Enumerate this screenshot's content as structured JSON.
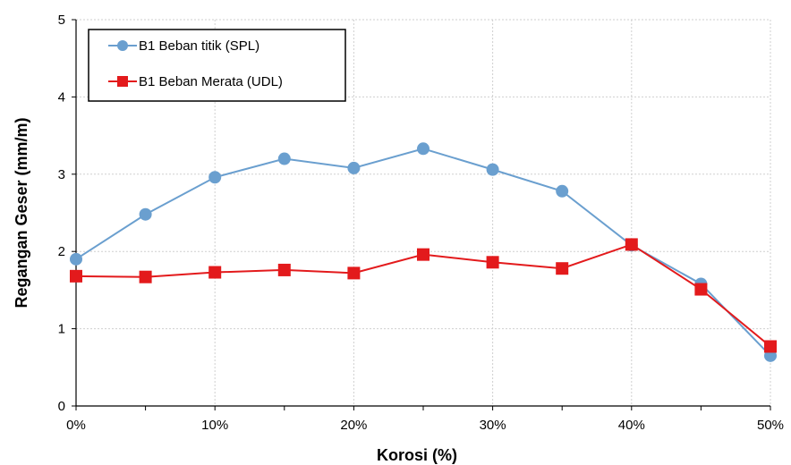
{
  "chart_data": {
    "type": "line",
    "title": "",
    "xlabel": "Korosi (%)",
    "ylabel": "Regangan Geser (mm/m)",
    "categories": [
      "0%",
      "5%",
      "10%",
      "15%",
      "20%",
      "25%",
      "30%",
      "35%",
      "40%",
      "45%",
      "50%"
    ],
    "x": [
      0,
      5,
      10,
      15,
      20,
      25,
      30,
      35,
      40,
      45,
      50
    ],
    "xlim": [
      0,
      50
    ],
    "ylim": [
      0,
      5
    ],
    "yticks": [
      "0",
      "1",
      "2",
      "3",
      "4",
      "5"
    ],
    "grid": true,
    "legend_position": "top-left",
    "series": [
      {
        "name": "B1 Beban titik (SPL)",
        "marker": "circle",
        "color": "#6a9fcf",
        "values": [
          1.9,
          2.48,
          2.96,
          3.2,
          3.08,
          3.33,
          3.06,
          2.78,
          2.08,
          1.58,
          0.65
        ]
      },
      {
        "name": "B1 Beban Merata (UDL)",
        "marker": "square",
        "color": "#e31a1c",
        "values": [
          1.68,
          1.67,
          1.73,
          1.76,
          1.72,
          1.96,
          1.86,
          1.78,
          2.09,
          1.51,
          0.77
        ]
      }
    ]
  }
}
